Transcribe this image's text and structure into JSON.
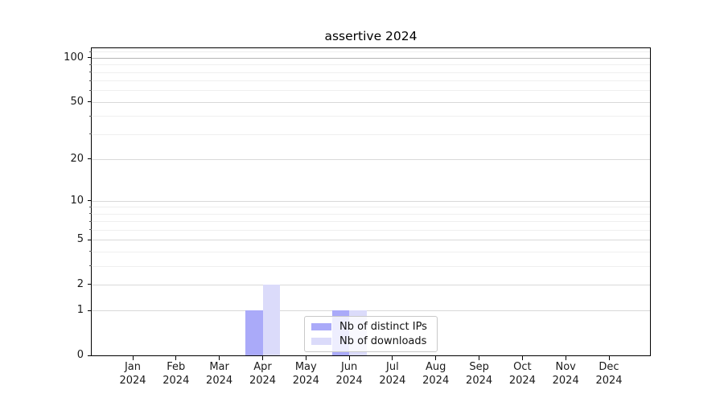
{
  "figure": {
    "background": "#ffffff"
  },
  "chart_data": {
    "type": "bar",
    "title": "assertive 2024",
    "x_months": [
      "Jan",
      "Feb",
      "Mar",
      "Apr",
      "May",
      "Jun",
      "Jul",
      "Aug",
      "Sep",
      "Oct",
      "Nov",
      "Dec"
    ],
    "x_year": "2024",
    "series": [
      {
        "name": "Nb of distinct IPs",
        "color": "#aaaaf9",
        "values": [
          0,
          0,
          0,
          1,
          0,
          1,
          0,
          0,
          0,
          0,
          0,
          0
        ]
      },
      {
        "name": "Nb of downloads",
        "color": "#dbdbfa",
        "values": [
          0,
          0,
          0,
          2,
          0,
          1,
          0,
          0,
          0,
          0,
          0,
          0
        ]
      }
    ],
    "y_scale": "log1p",
    "y_major_ticks": [
      0,
      1,
      2,
      5,
      10,
      20,
      50,
      100
    ],
    "y_minor_gridlines": [
      3,
      4,
      6,
      7,
      8,
      9,
      30,
      40,
      60,
      70,
      80,
      90,
      110
    ],
    "y_max": 116,
    "grid": true,
    "legend_position": "lower center",
    "colors": {
      "major_grid": "#d9d9d9",
      "minor_grid": "#efefef",
      "top_grid_100": "#b5b5b5",
      "axis": "#000000",
      "tick_text": "#1a1a1a"
    }
  },
  "legend": {
    "items": [
      {
        "label": "Nb of distinct IPs",
        "color": "#aaaaf9"
      },
      {
        "label": "Nb of downloads",
        "color": "#dbdbfa"
      }
    ]
  }
}
